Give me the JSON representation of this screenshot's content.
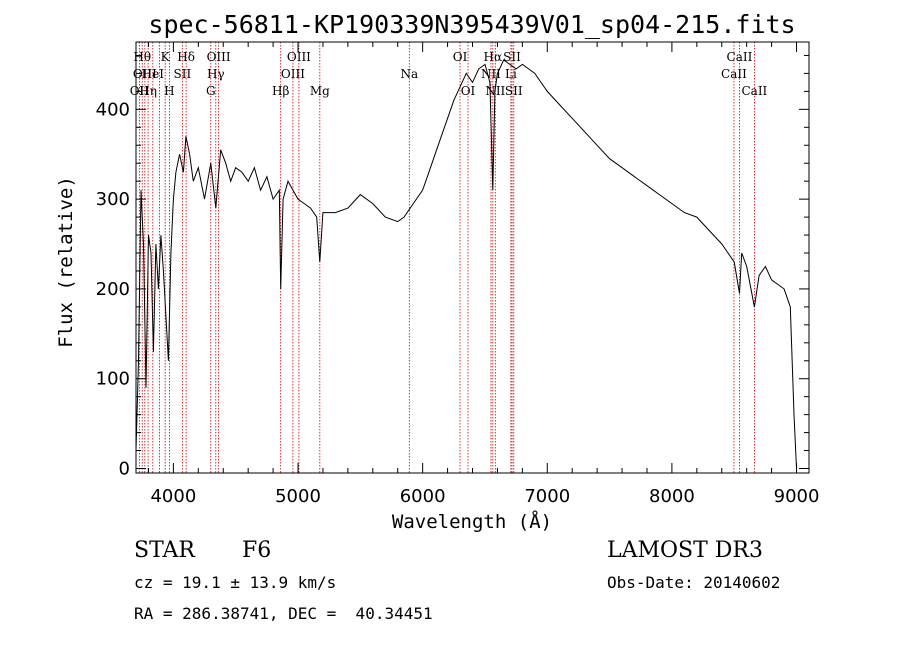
{
  "chart_data": {
    "type": "line",
    "title": "spec-56811-KP190339N395439V01_sp04-215.fits",
    "xlabel": "Wavelength (Å)",
    "ylabel": "Flux (relative)",
    "xlim": [
      3700,
      9100
    ],
    "ylim": [
      -5,
      475
    ],
    "xticks": [
      4000,
      5000,
      6000,
      7000,
      8000,
      9000
    ],
    "yticks": [
      0,
      100,
      200,
      300,
      400
    ],
    "series": [
      {
        "x": [
          3700,
          3720,
          3740,
          3760,
          3780,
          3800,
          3820,
          3840,
          3860,
          3880,
          3900,
          3920,
          3940,
          3960,
          3980,
          4000,
          4020,
          4050,
          4080,
          4100,
          4130,
          4160,
          4200,
          4250,
          4300,
          4340,
          4380,
          4420,
          4460,
          4500,
          4550,
          4600,
          4650,
          4700,
          4750,
          4800,
          4850,
          4861,
          4880,
          4920,
          4960,
          5000,
          5050,
          5100,
          5150,
          5175,
          5200,
          5300,
          5400,
          5500,
          5600,
          5700,
          5800,
          5850,
          5900,
          5950,
          6000,
          6050,
          6100,
          6150,
          6200,
          6250,
          6300,
          6350,
          6400,
          6450,
          6500,
          6540,
          6563,
          6580,
          6600,
          6650,
          6700,
          6750,
          6800,
          6850,
          6900,
          6950,
          7000,
          7100,
          7200,
          7300,
          7400,
          7500,
          7600,
          7700,
          7800,
          7900,
          8000,
          8100,
          8200,
          8300,
          8400,
          8450,
          8500,
          8542,
          8560,
          8600,
          8662,
          8700,
          8750,
          8800,
          8850,
          8900,
          8950,
          8980,
          9000
        ],
        "y": [
          20,
          120,
          310,
          250,
          90,
          260,
          240,
          130,
          250,
          200,
          260,
          220,
          170,
          120,
          240,
          300,
          330,
          350,
          330,
          370,
          350,
          320,
          335,
          300,
          340,
          290,
          355,
          340,
          320,
          335,
          330,
          320,
          335,
          310,
          325,
          300,
          310,
          200,
          300,
          320,
          310,
          300,
          295,
          290,
          280,
          230,
          285,
          285,
          290,
          305,
          295,
          280,
          275,
          280,
          290,
          300,
          310,
          330,
          350,
          370,
          390,
          410,
          425,
          440,
          430,
          445,
          450,
          430,
          310,
          420,
          440,
          455,
          450,
          445,
          450,
          445,
          440,
          430,
          420,
          405,
          390,
          375,
          360,
          345,
          335,
          325,
          315,
          305,
          295,
          285,
          280,
          265,
          250,
          240,
          230,
          195,
          240,
          225,
          180,
          215,
          225,
          210,
          205,
          200,
          180,
          60,
          0
        ]
      }
    ],
    "line_markers": [
      {
        "w": 3727,
        "label": "OII",
        "row": 3
      },
      {
        "w": 3750,
        "label": "Hθ",
        "row": 1
      },
      {
        "w": 3771,
        "label": "OIII",
        "row": 2
      },
      {
        "w": 3797,
        "label": "Hη",
        "row": 3
      },
      {
        "w": 3835,
        "label": "HeI",
        "row": 2
      },
      {
        "w": 3889,
        "label": "",
        "row": 0
      },
      {
        "w": 3934,
        "label": "K",
        "row": 1
      },
      {
        "w": 3968,
        "label": "H",
        "row": 3
      },
      {
        "w": 4072,
        "label": "SII",
        "row": 2
      },
      {
        "w": 4102,
        "label": "Hδ",
        "row": 1
      },
      {
        "w": 4300,
        "label": "G",
        "row": 3
      },
      {
        "w": 4340,
        "label": "Hγ",
        "row": 2
      },
      {
        "w": 4363,
        "label": "OIII",
        "row": 1
      },
      {
        "w": 4861,
        "label": "Hβ",
        "row": 3
      },
      {
        "w": 4959,
        "label": "OIII",
        "row": 2
      },
      {
        "w": 5007,
        "label": "OIII",
        "row": 1
      },
      {
        "w": 5175,
        "label": "Mg",
        "row": 3
      },
      {
        "w": 5893,
        "label": "Na",
        "row": 2
      },
      {
        "w": 6300,
        "label": "OI",
        "row": 1
      },
      {
        "w": 6364,
        "label": "OI",
        "row": 3
      },
      {
        "w": 6548,
        "label": "NII",
        "row": 2
      },
      {
        "w": 6563,
        "label": "Hα",
        "row": 1
      },
      {
        "w": 6583,
        "label": "NII",
        "row": 3
      },
      {
        "w": 6708,
        "label": "Li",
        "row": 2
      },
      {
        "w": 6717,
        "label": "SII",
        "row": 1
      },
      {
        "w": 6731,
        "label": "SII",
        "row": 3
      },
      {
        "w": 8498,
        "label": "CaII",
        "row": 2
      },
      {
        "w": 8542,
        "label": "CaII",
        "row": 1
      },
      {
        "w": 8662,
        "label": "CaII",
        "row": 3
      }
    ]
  },
  "info": {
    "class": "STAR",
    "subclass": "F6",
    "survey": "LAMOST DR3",
    "cz": "cz = 19.1 ± 13.9 km/s",
    "obs_date": "Obs-Date: 20140602",
    "coords": "RA = 286.38741, DEC =  40.34451"
  },
  "colors": {
    "line_marker": "#cc0000",
    "spectrum": "#000000"
  }
}
